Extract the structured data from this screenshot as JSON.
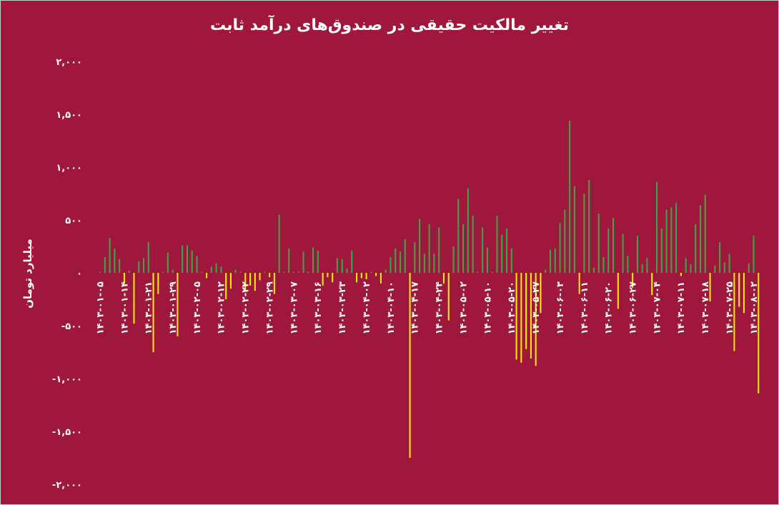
{
  "chart_data": {
    "type": "bar",
    "title": "تغییر مالکیت حقیقی در صندوق‌های درآمد ثابت",
    "y_label": "میلیارد تومان",
    "ylim": [
      -2000,
      2000
    ],
    "yticks": [
      {
        "value": 2000,
        "label": "۲,۰۰۰"
      },
      {
        "value": 1500,
        "label": "۱,۵۰۰"
      },
      {
        "value": 1000,
        "label": "۱,۰۰۰"
      },
      {
        "value": 500,
        "label": "۵۰۰"
      },
      {
        "value": 0,
        "label": "۰"
      },
      {
        "value": -500,
        "label": "-۵۰۰"
      },
      {
        "value": -1000,
        "label": "-۱,۰۰۰"
      },
      {
        "value": -1500,
        "label": "-۱,۵۰۰"
      },
      {
        "value": -2000,
        "label": "-۲,۰۰۰"
      }
    ],
    "positive_color": "#3aa648",
    "negative_color": "#ffee00",
    "categories": [
      "۱۴۰۳-۰۱-۰۵",
      null,
      null,
      null,
      null,
      "۱۴۰۳-۰۱-۱۴",
      null,
      null,
      null,
      null,
      "۱۴۰۳-۰۱-۲۱",
      null,
      null,
      null,
      null,
      "۱۴۰۳-۰۱-۲۹",
      null,
      null,
      null,
      null,
      "۱۴۰۳-۰۲-۰۵",
      null,
      null,
      null,
      null,
      "۱۴۰۳-۰۲-۱۲",
      null,
      null,
      null,
      null,
      "۱۴۰۳-۰۲-۲۲",
      null,
      null,
      null,
      null,
      "۱۴۰۳-۰۲-۲۹",
      null,
      null,
      null,
      null,
      "۱۴۰۳-۰۳-۰۷",
      null,
      null,
      null,
      null,
      "۱۴۰۳-۰۳-۱۶",
      null,
      null,
      null,
      null,
      "۱۴۰۳-۰۳-۲۳",
      null,
      null,
      null,
      null,
      "۱۴۰۳-۰۴-۰۲",
      null,
      null,
      null,
      null,
      "۱۴۰۳-۰۴-۱۰",
      null,
      null,
      null,
      null,
      "۱۴۰۳-۰۴-۱۷",
      null,
      null,
      null,
      null,
      "۱۴۰۳-۰۴-۲۴",
      null,
      null,
      null,
      null,
      "۱۴۰۳-۰۵-۰۲",
      null,
      null,
      null,
      null,
      "۱۴۰۳-۰۵-۱۰",
      null,
      null,
      null,
      null,
      "۱۴۰۳-۰۵-۲۰",
      null,
      null,
      null,
      null,
      "۱۴۰۳-۰۵-۲۷",
      null,
      null,
      null,
      null,
      "۱۴۰۳-۰۶-۰۳",
      null,
      null,
      null,
      null,
      "۱۴۰۳-۰۶-۱۱",
      null,
      null,
      null,
      null,
      "۱۴۰۳-۰۶-۲۰",
      null,
      null,
      null,
      null,
      "۱۴۰۳-۰۶-۲۷",
      null,
      null,
      null,
      null,
      "۱۴۰۳-۰۷-۰۴",
      null,
      null,
      null,
      null,
      "۱۴۰۳-۰۷-۱۱",
      null,
      null,
      null,
      null,
      "۱۴۰۳-۰۷-۱۸",
      null,
      null,
      null,
      null,
      "۱۴۰۳-۰۷-۲۵",
      null,
      null,
      null,
      null,
      "۱۴۰۳-۰۸-۰۲",
      null
    ],
    "values": [
      10,
      150,
      330,
      230,
      130,
      -100,
      20,
      -480,
      110,
      140,
      290,
      -750,
      -200,
      10,
      190,
      30,
      -600,
      260,
      260,
      210,
      160,
      10,
      -50,
      60,
      90,
      60,
      -250,
      -150,
      30,
      10,
      -180,
      -120,
      -170,
      -70,
      10,
      -40,
      -200,
      550,
      10,
      230,
      10,
      10,
      200,
      10,
      240,
      210,
      -120,
      -40,
      -90,
      140,
      130,
      40,
      210,
      -90,
      -50,
      -60,
      10,
      -30,
      -100,
      30,
      150,
      230,
      200,
      320,
      -1750,
      290,
      510,
      180,
      460,
      180,
      430,
      -100,
      -450,
      250,
      700,
      460,
      800,
      540,
      10,
      430,
      240,
      10,
      540,
      360,
      420,
      230,
      -820,
      -850,
      -720,
      -810,
      -880,
      -380,
      30,
      220,
      230,
      470,
      600,
      1440,
      820,
      -200,
      750,
      880,
      50,
      560,
      150,
      420,
      520,
      -340,
      370,
      160,
      -140,
      350,
      80,
      140,
      -210,
      860,
      420,
      600,
      620,
      660,
      -30,
      140,
      80,
      460,
      640,
      740,
      -270,
      70,
      290,
      100,
      180,
      -740,
      -320,
      -380,
      90,
      350,
      -1140
    ]
  }
}
